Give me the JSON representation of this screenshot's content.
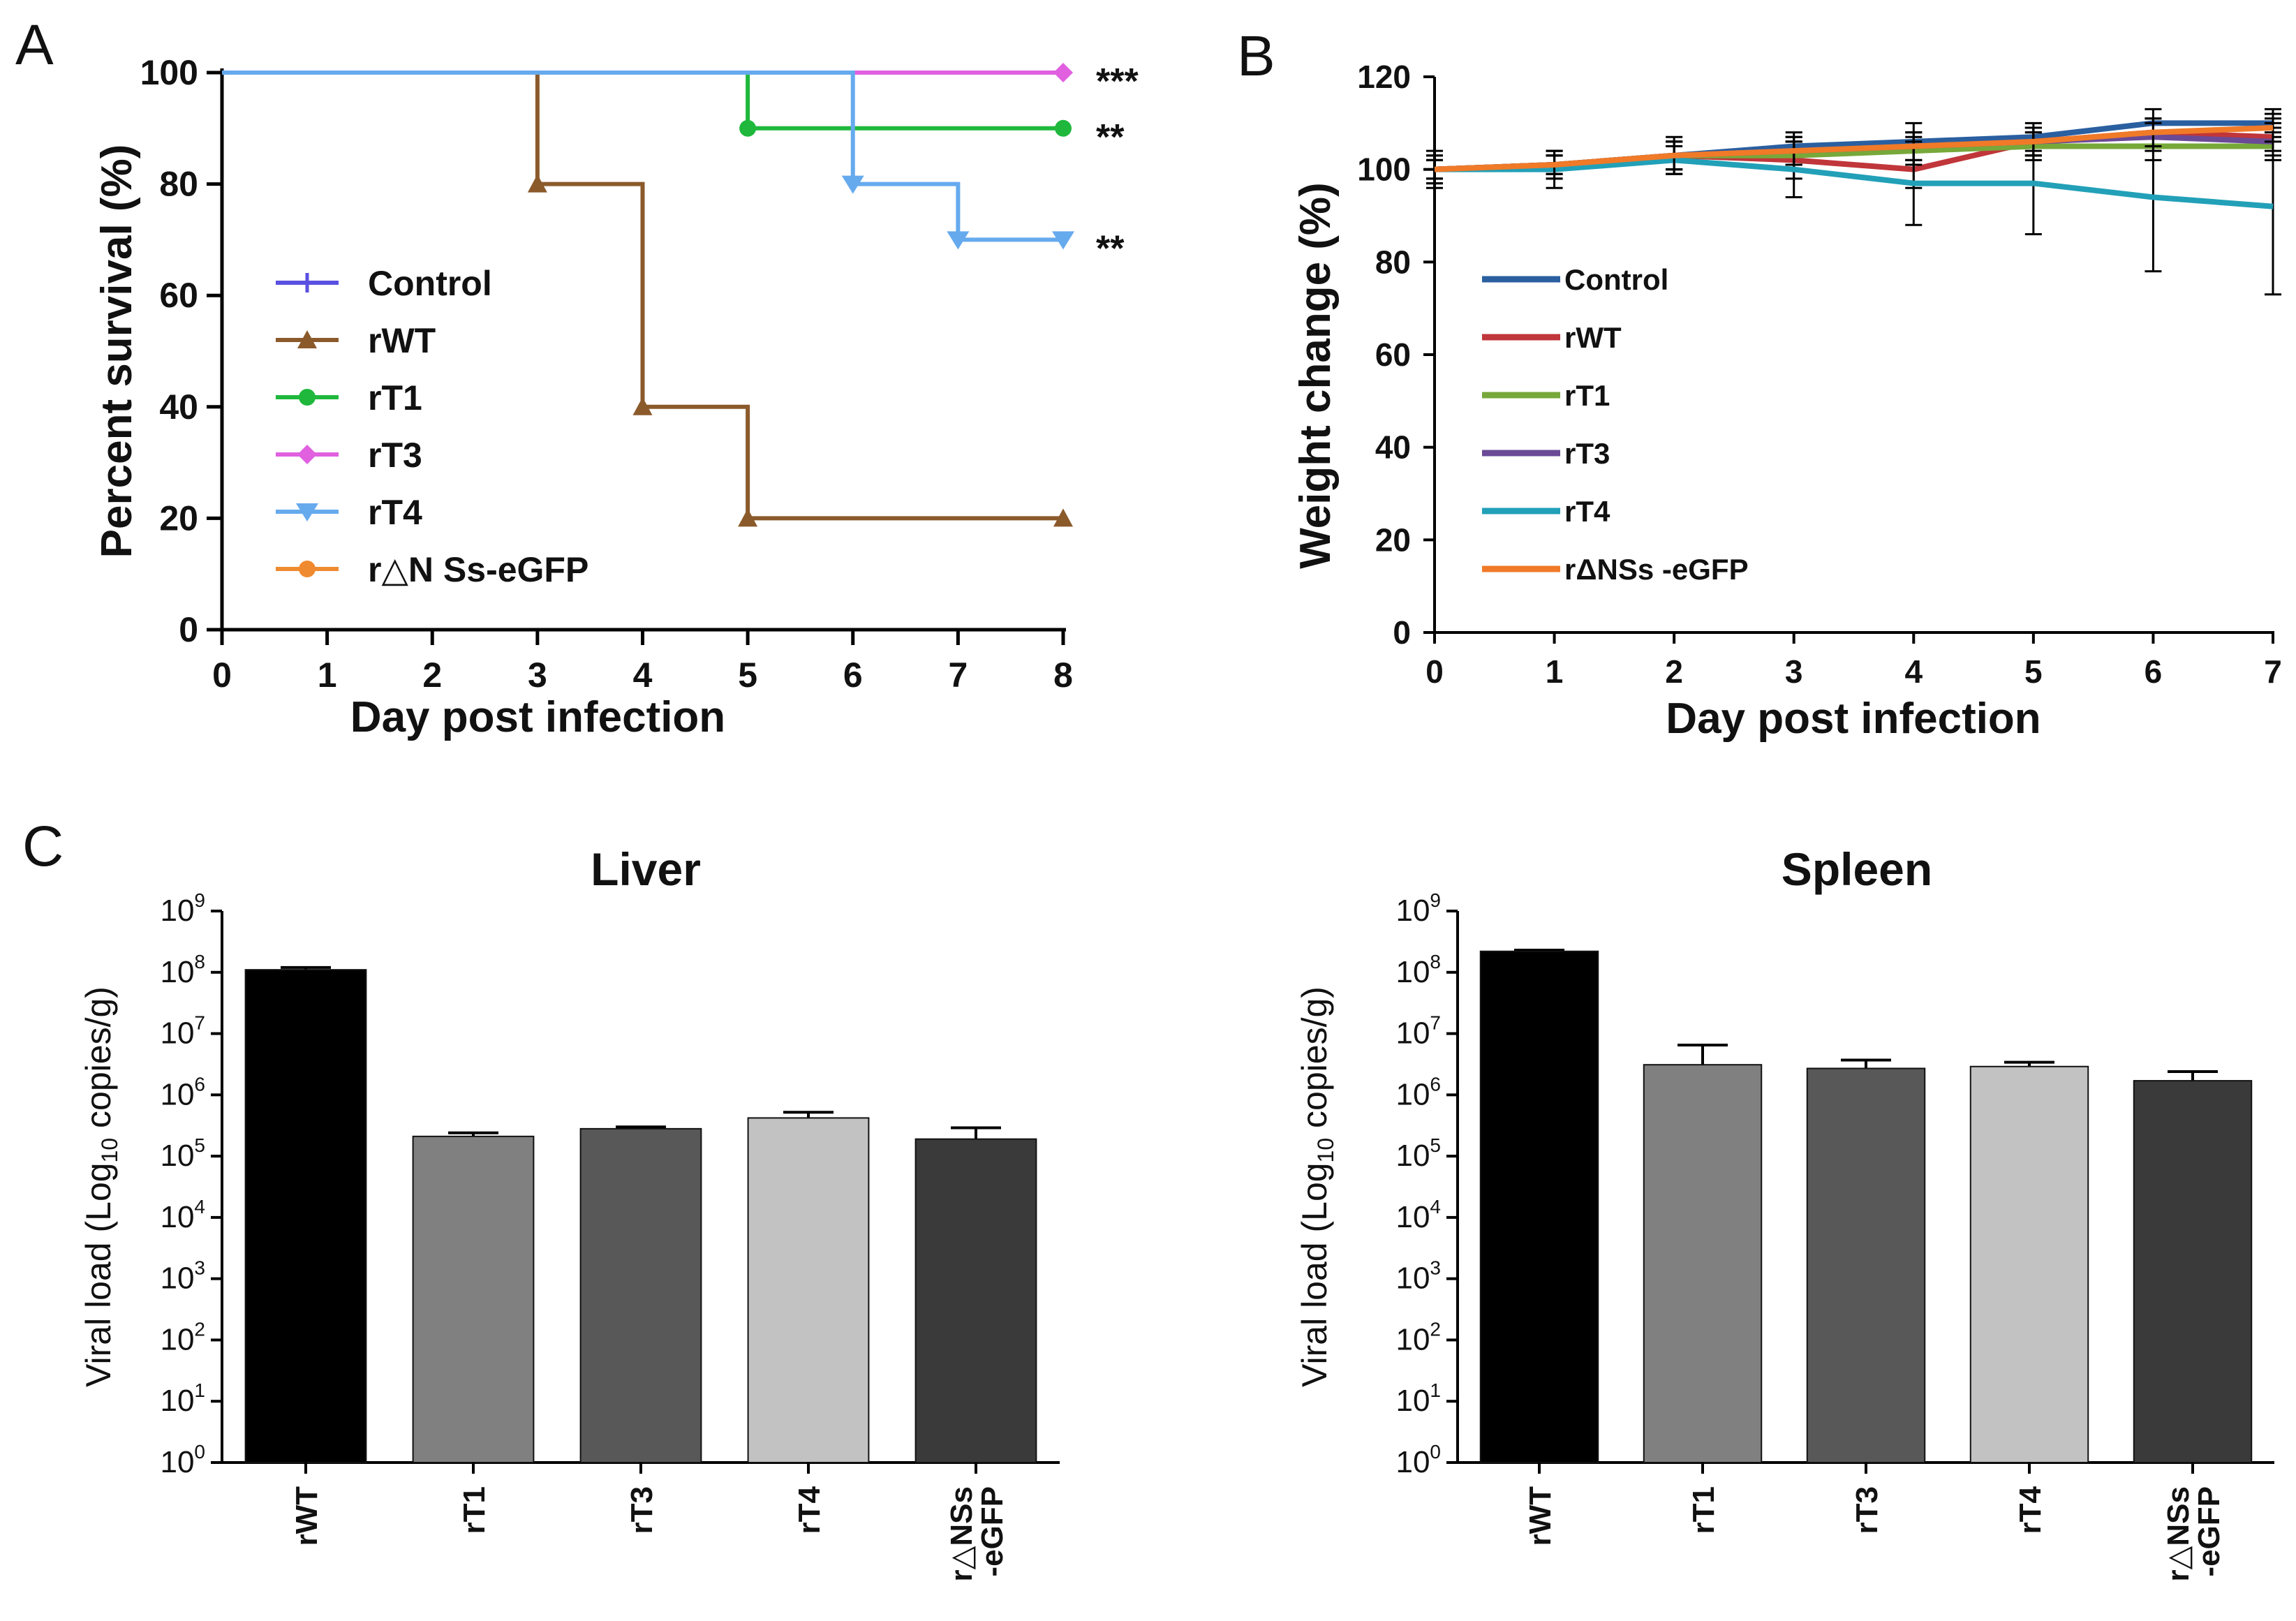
{
  "panels": {
    "a": "A",
    "b": "B",
    "c": "C"
  },
  "chart_data": [
    {
      "id": "A",
      "type": "line",
      "step": true,
      "ylabel": "Percent survival (%)",
      "xlabel": "Day post infection",
      "xlim": [
        0,
        8
      ],
      "ylim": [
        0,
        100
      ],
      "xticks": [
        "0",
        "1",
        "2",
        "3",
        "4",
        "5",
        "6",
        "7",
        "8"
      ],
      "yticks": [
        "0",
        "20",
        "40",
        "60",
        "80",
        "100"
      ],
      "series": [
        {
          "name": "Control",
          "color": "#5a50e0",
          "marker": "plus",
          "x": [
            0,
            8
          ],
          "y": [
            100,
            100
          ],
          "marked": []
        },
        {
          "name": "rWT",
          "color": "#8b5a2b",
          "marker": "triangle",
          "x": [
            0,
            3,
            4,
            5,
            8
          ],
          "y": [
            100,
            80,
            40,
            20,
            20
          ],
          "marked": [
            1,
            2,
            3,
            4
          ]
        },
        {
          "name": "rT1",
          "color": "#1fb83c",
          "marker": "circle",
          "x": [
            0,
            5,
            8
          ],
          "y": [
            100,
            90,
            90
          ],
          "marked": [
            1,
            2
          ]
        },
        {
          "name": "rT3",
          "color": "#e060e0",
          "marker": "diamond",
          "x": [
            0,
            8
          ],
          "y": [
            100,
            100
          ],
          "marked": [
            1
          ]
        },
        {
          "name": "rT4",
          "color": "#66aaee",
          "marker": "tri-down",
          "x": [
            0,
            6,
            7,
            8
          ],
          "y": [
            100,
            80,
            70,
            70
          ],
          "marked": [
            1,
            2,
            3
          ]
        },
        {
          "name": "r△N Ss-eGFP",
          "color": "#f08a30",
          "marker": "circle",
          "x": [
            0,
            8
          ],
          "y": [
            100,
            100
          ],
          "marked": []
        }
      ],
      "annotations": [
        {
          "text": "***",
          "y": 100
        },
        {
          "text": "**",
          "y": 90
        },
        {
          "text": "**",
          "y": 70
        }
      ]
    },
    {
      "id": "B",
      "type": "line",
      "ylabel": "Weight change (%)",
      "xlabel": "Day post infection",
      "xlim": [
        0,
        7
      ],
      "ylim": [
        0,
        120
      ],
      "xticks": [
        "0",
        "1",
        "2",
        "3",
        "4",
        "5",
        "6",
        "7"
      ],
      "yticks": [
        "0",
        "20",
        "40",
        "60",
        "80",
        "100",
        "120"
      ],
      "x": [
        0,
        1,
        2,
        3,
        4,
        5,
        6,
        7
      ],
      "series": [
        {
          "name": "Control",
          "color": "#2a5fa0",
          "values": [
            100,
            101,
            103,
            105,
            106,
            107,
            110,
            110
          ],
          "err": [
            3,
            3,
            3,
            3,
            4,
            3,
            3,
            3
          ]
        },
        {
          "name": "rWT",
          "color": "#c0363a",
          "values": [
            100,
            101,
            103,
            102,
            100,
            106,
            108,
            107
          ],
          "err": [
            3,
            3,
            4,
            4,
            4,
            3,
            3,
            3
          ]
        },
        {
          "name": "rT1",
          "color": "#77a83a",
          "values": [
            100,
            101,
            103,
            103,
            104,
            105,
            105,
            105
          ],
          "err": [
            2,
            2,
            3,
            3,
            3,
            3,
            3,
            3
          ]
        },
        {
          "name": "rT3",
          "color": "#6a4a96",
          "values": [
            100,
            101,
            103,
            104,
            105,
            106,
            107,
            106
          ],
          "err": [
            2,
            2,
            3,
            3,
            3,
            3,
            3,
            3
          ]
        },
        {
          "name": "rT4",
          "color": "#22a0b8",
          "values": [
            100,
            100,
            102,
            100,
            97,
            97,
            94,
            92
          ],
          "err": [
            4,
            4,
            3,
            6,
            9,
            11,
            16,
            19
          ]
        },
        {
          "name": "rΔNSs -eGFP",
          "color": "#f07a28",
          "values": [
            100,
            101,
            103,
            104,
            105,
            106,
            108,
            109
          ],
          "err": [
            2,
            2,
            3,
            3,
            3,
            3,
            3,
            3
          ]
        }
      ]
    },
    {
      "id": "C-liver",
      "type": "bar",
      "title": "Liver",
      "ylabel": "Viral load (Log10 copies/g)",
      "yscale": "log",
      "ylim": [
        1,
        1000000000
      ],
      "categories": [
        "rWT",
        "rT1",
        "rT3",
        "rT4",
        "r△NSs\n-eGFP"
      ],
      "values": [
        110000000,
        210000,
        280000,
        420000,
        190000
      ],
      "err_upper": [
        120000000,
        240000,
        300000,
        520000,
        290000
      ],
      "colors": [
        "#000000",
        "#808080",
        "#585858",
        "#c2c2c2",
        "#3a3a3a"
      ]
    },
    {
      "id": "C-spleen",
      "type": "bar",
      "title": "Spleen",
      "ylabel": "Viral load (Log10 copies/g)",
      "yscale": "log",
      "ylim": [
        1,
        1000000000
      ],
      "categories": [
        "rWT",
        "rT1",
        "rT3",
        "rT4",
        "r△NSs\n-eGFP"
      ],
      "values": [
        220000000,
        3100000,
        2700000,
        2900000,
        1700000
      ],
      "err_upper": [
        230000000,
        6500000,
        3700000,
        3400000,
        2400000
      ],
      "colors": [
        "#000000",
        "#808080",
        "#585858",
        "#c2c2c2",
        "#3a3a3a"
      ]
    }
  ]
}
